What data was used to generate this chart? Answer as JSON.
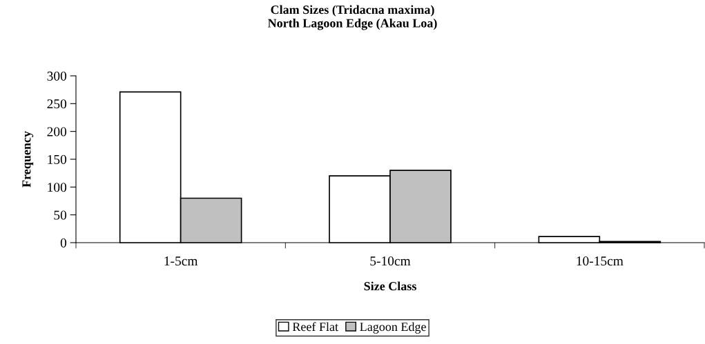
{
  "chart_data": {
    "type": "bar",
    "title": "Clam Sizes (Tridacna maxima)\nNorth Lagoon Edge (Akau Loa)",
    "xlabel": "Size Class",
    "ylabel": "Frequency",
    "categories": [
      "1-5cm",
      "5-10cm",
      "10-15cm"
    ],
    "series": [
      {
        "name": "Reef Flat",
        "color": "#ffffff",
        "values": [
          271,
          120,
          11
        ]
      },
      {
        "name": "Lagoon Edge",
        "color": "#c0c0c0",
        "values": [
          80,
          130,
          2
        ]
      }
    ],
    "ylim": [
      0,
      300
    ],
    "yticks": [
      0,
      50,
      100,
      150,
      200,
      250,
      300
    ],
    "grid": false,
    "legend": "bottom"
  }
}
